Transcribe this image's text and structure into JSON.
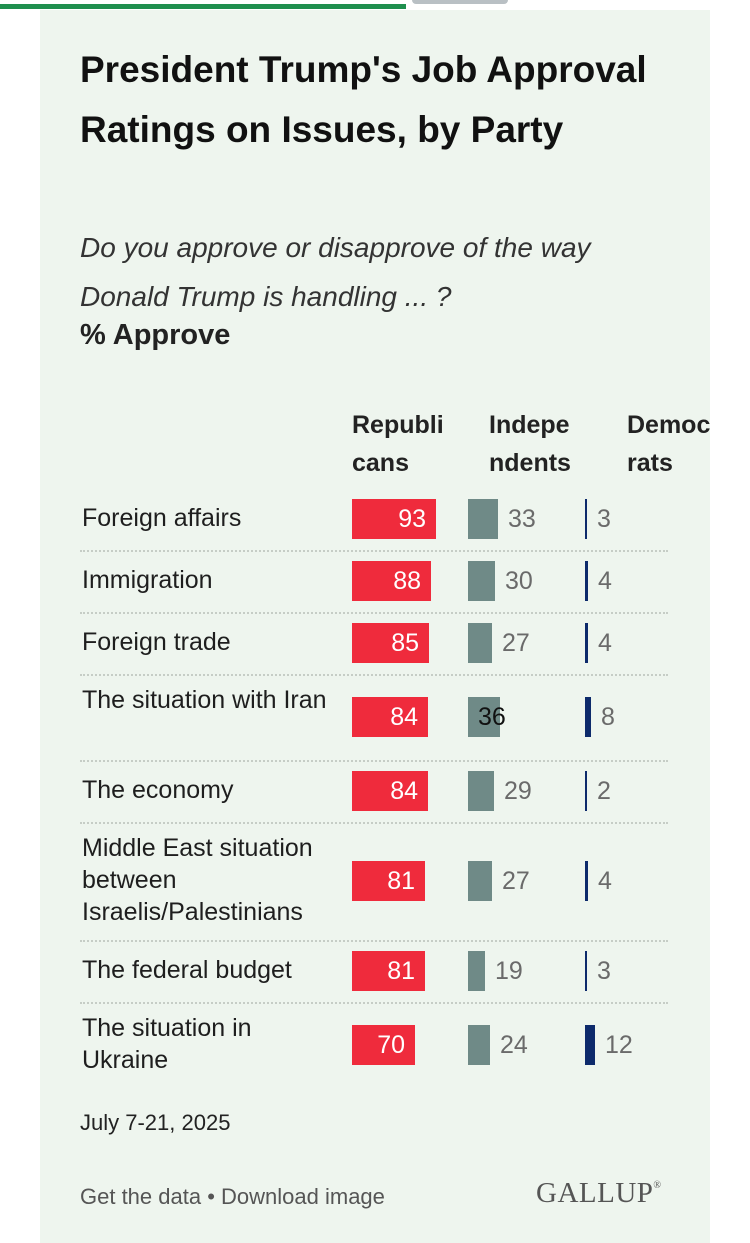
{
  "chart_data": {
    "type": "bar",
    "title": "President Trump's Job Approval Ratings on Issues, by Party",
    "subtitle": "Do you approve or disapprove of the way Donald Trump is handling ... ?",
    "unit_label": "% Approve",
    "categories": [
      "Foreign affairs",
      "Immigration",
      "Foreign trade",
      "The situation with Iran",
      "The economy",
      "Middle East situation between Israelis/Palestinians",
      "The federal budget",
      "The situation in Ukraine"
    ],
    "series": [
      {
        "name": "Republicans",
        "values": [
          93,
          88,
          85,
          84,
          84,
          81,
          81,
          70
        ]
      },
      {
        "name": "Independents",
        "values": [
          33,
          30,
          27,
          36,
          29,
          27,
          19,
          24
        ]
      },
      {
        "name": "Democrats",
        "values": [
          3,
          4,
          4,
          8,
          2,
          4,
          3,
          12
        ]
      }
    ],
    "column_headers": [
      "Republi cans",
      "Indepe ndents",
      "Democ rats"
    ],
    "colors": {
      "republicans": "#ef2b3c",
      "independents": "#6f8a87",
      "democrats": "#0d2a6b"
    },
    "note": "July 7-21, 2025"
  },
  "footer": {
    "get_data_label": "Get the data",
    "separator": " • ",
    "download_label": "Download image",
    "logo_text": "GALLUP",
    "logo_mark": "®"
  }
}
